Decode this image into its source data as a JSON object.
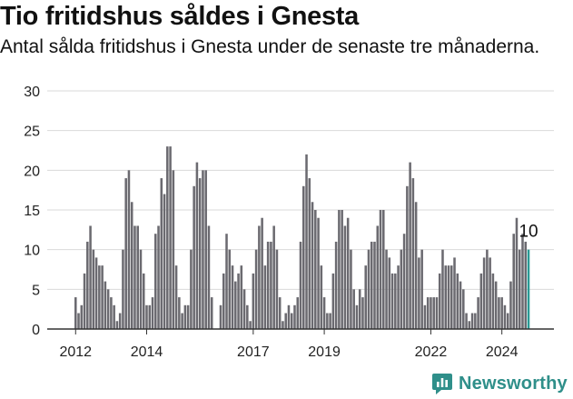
{
  "title": "Tio fritidshus såldes i Gnesta",
  "subtitle": "Antal sålda fritidshus i Gnesta under de senaste tre månaderna.",
  "brand": "Newsworthy",
  "colors": {
    "bar": "#6b6a70",
    "highlight": "#2a9a94",
    "grid": "#d9d9d9",
    "brand": "#2f8f8a"
  },
  "chart_data": {
    "type": "bar",
    "ylim": [
      0,
      30
    ],
    "yticks": [
      0,
      5,
      10,
      15,
      20,
      25,
      30
    ],
    "xtick_labels": [
      {
        "label": "2012",
        "index": 0
      },
      {
        "label": "2014",
        "index": 24
      },
      {
        "label": "2017",
        "index": 60
      },
      {
        "label": "2019",
        "index": 84
      },
      {
        "label": "2022",
        "index": 120
      },
      {
        "label": "2024",
        "index": 144
      }
    ],
    "last_value_label": "10",
    "values": [
      4,
      2,
      3,
      7,
      11,
      13,
      10,
      9,
      8,
      8,
      6,
      5,
      4,
      3,
      1,
      2,
      10,
      19,
      20,
      16,
      13,
      13,
      10,
      7,
      3,
      3,
      4,
      12,
      13,
      19,
      17,
      23,
      23,
      20,
      8,
      4,
      2,
      3,
      3,
      10,
      18,
      21,
      19,
      20,
      20,
      13,
      4,
      0,
      0,
      3,
      7,
      12,
      10,
      8,
      6,
      7,
      8,
      5,
      3,
      1,
      7,
      10,
      13,
      14,
      8,
      11,
      11,
      13,
      10,
      4,
      1,
      2,
      3,
      2,
      3,
      4,
      11,
      18,
      22,
      19,
      16,
      15,
      14,
      8,
      4,
      2,
      2,
      7,
      11,
      15,
      15,
      13,
      14,
      10,
      5,
      3,
      5,
      4,
      8,
      10,
      11,
      11,
      13,
      15,
      15,
      10,
      9,
      7,
      7,
      8,
      10,
      12,
      18,
      21,
      19,
      16,
      9,
      10,
      3,
      4,
      4,
      4,
      4,
      7,
      10,
      8,
      8,
      8,
      9,
      7,
      6,
      5,
      2,
      1,
      2,
      2,
      4,
      7,
      9,
      10,
      9,
      7,
      6,
      4,
      4,
      3,
      2,
      6,
      12,
      14,
      10,
      12,
      11,
      10
    ]
  }
}
